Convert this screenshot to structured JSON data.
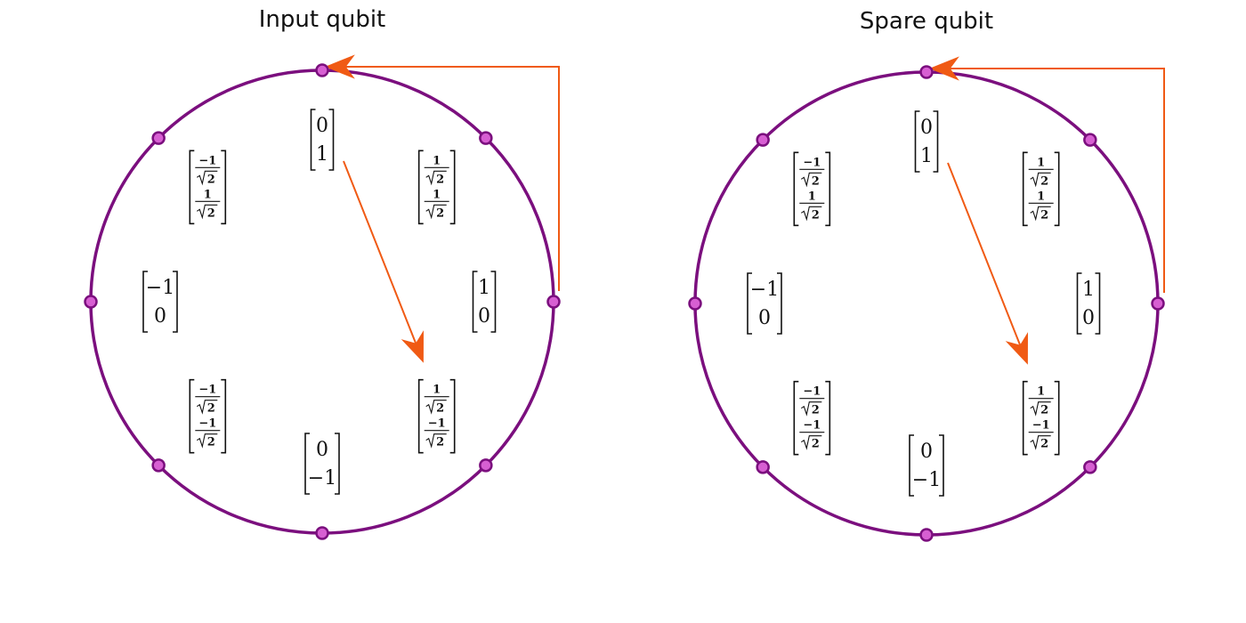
{
  "colors": {
    "circle": "#7b0f7e",
    "dot_fill": "#d75fd2",
    "dot_stroke": "#7b0f7e",
    "arrow": "#f05a14",
    "text": "#111111"
  },
  "states": [
    {
      "angle_deg": 90,
      "top": "0",
      "bottom": "1"
    },
    {
      "angle_deg": 45,
      "top": "1/√2",
      "bottom": "1/√2"
    },
    {
      "angle_deg": 0,
      "top": "1",
      "bottom": "0"
    },
    {
      "angle_deg": -45,
      "top": "1/√2",
      "bottom": "−1/√2"
    },
    {
      "angle_deg": -90,
      "top": "0",
      "bottom": "−1"
    },
    {
      "angle_deg": -135,
      "top": "−1/√2",
      "bottom": "−1/√2"
    },
    {
      "angle_deg": 180,
      "top": "−1",
      "bottom": "0"
    },
    {
      "angle_deg": 135,
      "top": "−1/√2",
      "bottom": "1/√2"
    }
  ],
  "panels": [
    {
      "title": "Input qubit",
      "state_vector_angle_deg": -45,
      "feedback_arrow": {
        "from_angle_deg": 0,
        "to_angle_deg": 90
      }
    },
    {
      "title": "Spare qubit",
      "state_vector_angle_deg": -45,
      "feedback_arrow": {
        "from_angle_deg": 0,
        "to_angle_deg": 90
      }
    }
  ]
}
